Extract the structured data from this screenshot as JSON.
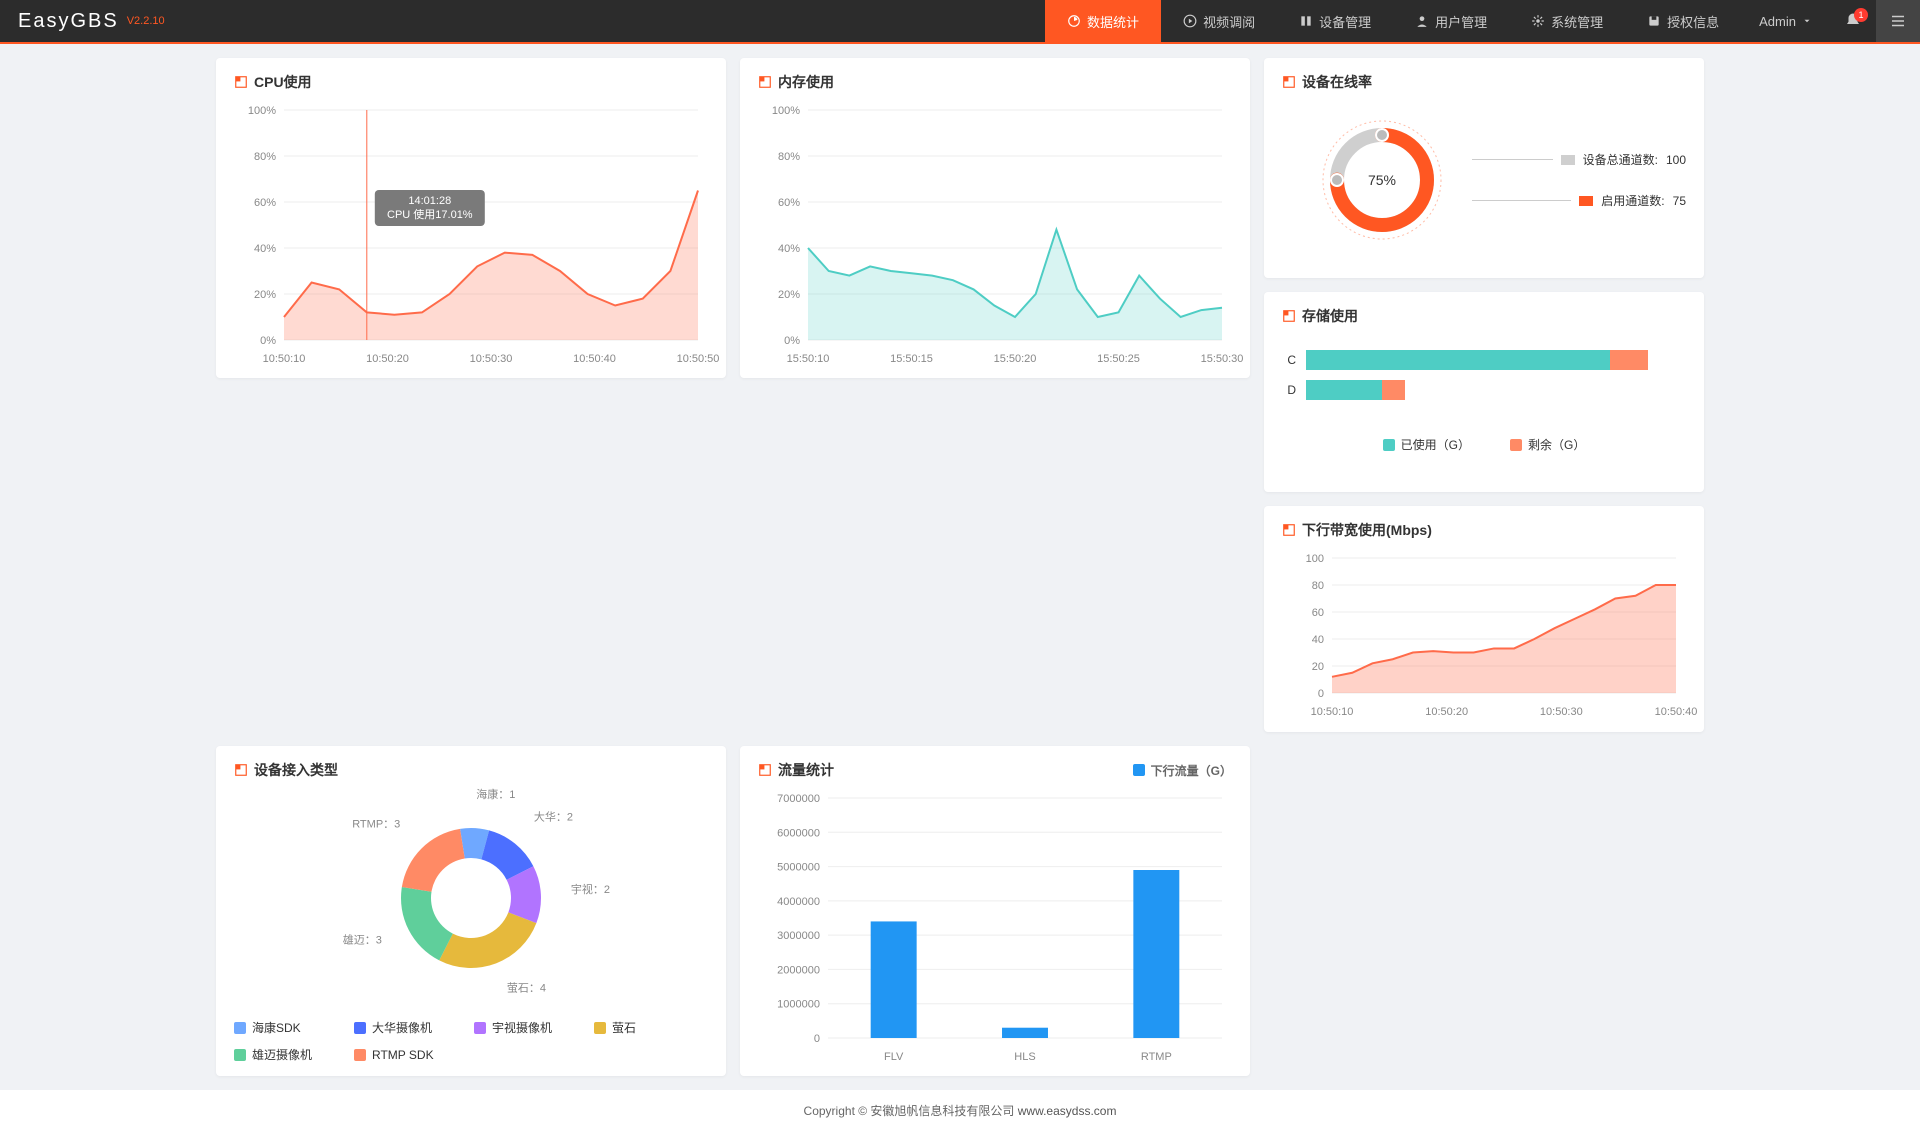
{
  "brand": {
    "name": "EasyGBS",
    "version": "V2.2.10"
  },
  "nav": [
    {
      "label": "数据统计",
      "active": true
    },
    {
      "label": "视频调阅"
    },
    {
      "label": "设备管理"
    },
    {
      "label": "用户管理"
    },
    {
      "label": "系统管理"
    },
    {
      "label": "授权信息"
    }
  ],
  "user": {
    "name": "Admin"
  },
  "notifications": {
    "count": "1"
  },
  "cpu": {
    "title": "CPU使用",
    "type": "area",
    "ylim": [
      0,
      100
    ],
    "ytick_step": 20,
    "y_suffix": "%",
    "x_labels": [
      "10:50:10",
      "10:50:20",
      "10:50:30",
      "10:50:40",
      "10:50:50"
    ],
    "values": [
      10,
      25,
      22,
      12,
      11,
      12,
      20,
      32,
      38,
      37,
      30,
      20,
      15,
      18,
      30,
      65
    ],
    "stroke": "#ff6b4a",
    "fill": "rgba(255,107,74,0.25)",
    "grid_color": "#eeeeee",
    "axis_color": "#888888",
    "cursor_x": 3,
    "cursor_color": "#ff6b4a",
    "tooltip": {
      "line1": "14:01:28",
      "line2": "CPU 使用17.01%",
      "bg": "#7a7a7a"
    }
  },
  "mem": {
    "title": "内存使用",
    "type": "area",
    "ylim": [
      0,
      100
    ],
    "ytick_step": 20,
    "y_suffix": "%",
    "x_labels": [
      "15:50:10",
      "15:50:15",
      "15:50:20",
      "15:50:25",
      "15:50:30"
    ],
    "values": [
      40,
      30,
      28,
      32,
      30,
      29,
      28,
      26,
      22,
      15,
      10,
      20,
      48,
      22,
      10,
      12,
      28,
      18,
      10,
      13,
      14
    ],
    "stroke": "#4ecdc4",
    "fill": "rgba(78,205,196,0.22)",
    "grid_color": "#eeeeee"
  },
  "online": {
    "title": "设备在线率",
    "percent_label": "75%",
    "ratio": 0.75,
    "ring_color": "#ff5722",
    "ring_bg": "#cfcfcf",
    "total_label": "设备总通道数:",
    "total_value": "100",
    "enabled_label": "启用通道数:",
    "enabled_value": "75",
    "total_sw": "#cfcfcf",
    "enabled_sw": "#ff5722"
  },
  "storage": {
    "title": "存储使用",
    "legend_used": "已使用（G）",
    "legend_free": "剩余（G）",
    "used_color": "#4ecdc4",
    "free_color": "#ff8a65",
    "drives": [
      {
        "label": "C",
        "used_pct": 80,
        "free_pct": 10
      },
      {
        "label": "D",
        "used_pct": 20,
        "free_pct": 6
      }
    ]
  },
  "device_type": {
    "title": "设备接入类型",
    "type": "donut",
    "slices": [
      {
        "label": "海康：",
        "value": 1,
        "color": "#6fa8ff",
        "legend": "海康SDK"
      },
      {
        "label": "大华：",
        "value": 2,
        "color": "#4c6fff",
        "legend": "大华摄像机"
      },
      {
        "label": "宇视：",
        "value": 2,
        "color": "#b174ff",
        "legend": "宇视摄像机"
      },
      {
        "label": "萤石：",
        "value": 4,
        "color": "#e6b93c",
        "legend": "萤石"
      },
      {
        "label": "雄迈：",
        "value": 3,
        "color": "#5fcf9b",
        "legend": "雄迈摄像机"
      },
      {
        "label": "RTMP：",
        "value": 3,
        "color": "#ff8a65",
        "legend": "RTMP SDK"
      }
    ]
  },
  "traffic": {
    "title": "流量统计",
    "legend_label": "下行流量（G）",
    "type": "bar",
    "ylim": [
      0,
      7000000
    ],
    "ytick_step": 1000000,
    "categories": [
      "FLV",
      "HLS",
      "RTMP"
    ],
    "values": [
      3400000,
      300000,
      4900000
    ],
    "bar_color": "#2196f3",
    "grid_color": "#eeeeee"
  },
  "bandwidth": {
    "title": "下行带宽使用(Mbps)",
    "type": "area",
    "ylim": [
      0,
      100
    ],
    "ytick_step": 20,
    "x_labels": [
      "10:50:10",
      "10:50:20",
      "10:50:30",
      "10:50:40"
    ],
    "values": [
      12,
      15,
      22,
      25,
      30,
      31,
      30,
      30,
      33,
      33,
      40,
      48,
      55,
      62,
      70,
      72,
      80,
      80
    ],
    "stroke": "#ff6b4a",
    "fill": "rgba(255,107,74,0.3)"
  },
  "footer": {
    "copyright": "Copyright © 安徽旭帆信息科技有限公司 ",
    "link": "www.easydss.com"
  }
}
